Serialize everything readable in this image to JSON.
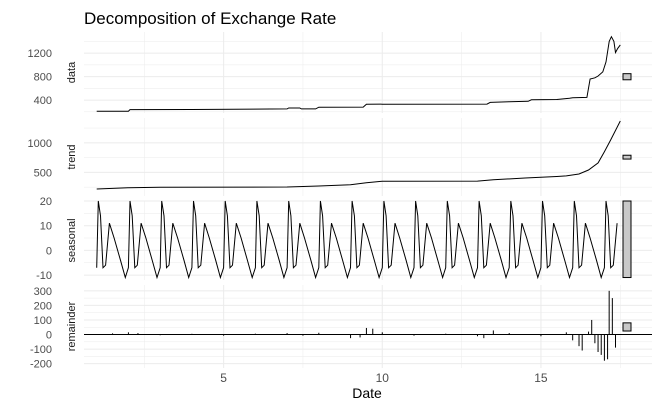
{
  "chart_data": {
    "type": "line",
    "title": "Decomposition of Exchange Rate",
    "xlabel": "Date",
    "xlim": [
      0.6,
      18.5
    ],
    "x_ticks": [
      "5",
      "10",
      "15"
    ],
    "x_tick_values": [
      5,
      10,
      15
    ],
    "background": "#ffffff",
    "grid": true,
    "grid_color": "#ebebeb",
    "line_color": "#000000",
    "range_bar_fill": "#c8c8c8",
    "panels": [
      {
        "name": "data",
        "ylim": [
          180,
          1560
        ],
        "y_ticks": [
          "400",
          "800",
          "1200"
        ],
        "y_tick_values": [
          400,
          800,
          1200
        ],
        "series": [
          {
            "x": 1.0,
            "y": 210
          },
          {
            "x": 2.0,
            "y": 210
          },
          {
            "x": 2.05,
            "y": 238
          },
          {
            "x": 4.0,
            "y": 240
          },
          {
            "x": 7.0,
            "y": 250
          },
          {
            "x": 7.05,
            "y": 265
          },
          {
            "x": 7.4,
            "y": 265
          },
          {
            "x": 7.45,
            "y": 250
          },
          {
            "x": 7.9,
            "y": 250
          },
          {
            "x": 8.0,
            "y": 278
          },
          {
            "x": 9.4,
            "y": 280
          },
          {
            "x": 9.5,
            "y": 330
          },
          {
            "x": 13.3,
            "y": 332
          },
          {
            "x": 13.4,
            "y": 360
          },
          {
            "x": 14.0,
            "y": 372
          },
          {
            "x": 14.6,
            "y": 380
          },
          {
            "x": 14.7,
            "y": 405
          },
          {
            "x": 15.5,
            "y": 410
          },
          {
            "x": 15.9,
            "y": 430
          },
          {
            "x": 16.0,
            "y": 440
          },
          {
            "x": 16.45,
            "y": 445
          },
          {
            "x": 16.55,
            "y": 760
          },
          {
            "x": 16.7,
            "y": 780
          },
          {
            "x": 16.8,
            "y": 810
          },
          {
            "x": 16.95,
            "y": 880
          },
          {
            "x": 17.05,
            "y": 1050
          },
          {
            "x": 17.15,
            "y": 1400
          },
          {
            "x": 17.22,
            "y": 1480
          },
          {
            "x": 17.3,
            "y": 1400
          },
          {
            "x": 17.35,
            "y": 1210
          },
          {
            "x": 17.42,
            "y": 1280
          },
          {
            "x": 17.5,
            "y": 1340
          }
        ],
        "range_bar": [
          746,
          850
        ]
      },
      {
        "name": "trend",
        "ylim": [
          100,
          1420
        ],
        "y_ticks": [
          "500",
          "1000"
        ],
        "y_tick_values": [
          500,
          1000
        ],
        "series": [
          {
            "x": 1.0,
            "y": 218
          },
          {
            "x": 2.0,
            "y": 240
          },
          {
            "x": 3.0,
            "y": 248
          },
          {
            "x": 7.0,
            "y": 252
          },
          {
            "x": 8.0,
            "y": 270
          },
          {
            "x": 9.0,
            "y": 292
          },
          {
            "x": 9.5,
            "y": 325
          },
          {
            "x": 10.0,
            "y": 350
          },
          {
            "x": 13.0,
            "y": 352
          },
          {
            "x": 13.5,
            "y": 375
          },
          {
            "x": 14.5,
            "y": 405
          },
          {
            "x": 15.5,
            "y": 430
          },
          {
            "x": 15.8,
            "y": 440
          },
          {
            "x": 16.2,
            "y": 472
          },
          {
            "x": 16.5,
            "y": 540
          },
          {
            "x": 16.8,
            "y": 660
          },
          {
            "x": 17.0,
            "y": 850
          },
          {
            "x": 17.2,
            "y": 1050
          },
          {
            "x": 17.5,
            "y": 1370
          }
        ],
        "range_bar": [
          725,
          790
        ]
      },
      {
        "name": "seasonal",
        "ylim": [
          -12,
          20
        ],
        "y_ticks": [
          "20",
          "10",
          "0",
          "-10"
        ],
        "y_tick_values": [
          20,
          10,
          0,
          -10
        ],
        "period": 1,
        "cycle_start": 1.0,
        "cycle_end": 17.5,
        "cycle_shape": [
          {
            "t": 0.0,
            "y": -7
          },
          {
            "t": 0.05,
            "y": 20
          },
          {
            "t": 0.12,
            "y": 14
          },
          {
            "t": 0.2,
            "y": -7
          },
          {
            "t": 0.28,
            "y": -6
          },
          {
            "t": 0.4,
            "y": 11
          },
          {
            "t": 0.55,
            "y": 5
          },
          {
            "t": 0.75,
            "y": -4
          },
          {
            "t": 0.9,
            "y": -11
          },
          {
            "t": 1.0,
            "y": -7
          }
        ],
        "range_bar": [
          -11,
          20
        ]
      },
      {
        "name": "remainder",
        "ylim": [
          -230,
          340
        ],
        "y_ticks": [
          "300",
          "200",
          "100",
          "0",
          "-100",
          "-200"
        ],
        "y_tick_values": [
          300,
          200,
          100,
          0,
          -100,
          -200
        ],
        "series": [
          {
            "x": 1.0,
            "y": 0
          },
          {
            "x": 1.5,
            "y": 8
          },
          {
            "x": 2.0,
            "y": 15
          },
          {
            "x": 2.3,
            "y": 10
          },
          {
            "x": 3.0,
            "y": -5
          },
          {
            "x": 4.0,
            "y": 5
          },
          {
            "x": 5.0,
            "y": -8
          },
          {
            "x": 6.0,
            "y": 6
          },
          {
            "x": 7.0,
            "y": 10
          },
          {
            "x": 7.5,
            "y": -8
          },
          {
            "x": 8.0,
            "y": 12
          },
          {
            "x": 9.0,
            "y": -25
          },
          {
            "x": 9.3,
            "y": -20
          },
          {
            "x": 9.5,
            "y": 45
          },
          {
            "x": 9.7,
            "y": 40
          },
          {
            "x": 10.0,
            "y": 15
          },
          {
            "x": 11.0,
            "y": -8
          },
          {
            "x": 12.0,
            "y": 6
          },
          {
            "x": 13.0,
            "y": -12
          },
          {
            "x": 13.2,
            "y": -25
          },
          {
            "x": 13.5,
            "y": 28
          },
          {
            "x": 14.0,
            "y": 10
          },
          {
            "x": 15.0,
            "y": -12
          },
          {
            "x": 15.8,
            "y": 15
          },
          {
            "x": 16.0,
            "y": -40
          },
          {
            "x": 16.2,
            "y": -80
          },
          {
            "x": 16.3,
            "y": -110
          },
          {
            "x": 16.5,
            "y": 20
          },
          {
            "x": 16.6,
            "y": 100
          },
          {
            "x": 16.7,
            "y": -60
          },
          {
            "x": 16.8,
            "y": -120
          },
          {
            "x": 16.9,
            "y": -140
          },
          {
            "x": 17.0,
            "y": -180
          },
          {
            "x": 17.1,
            "y": -170
          },
          {
            "x": 17.15,
            "y": 300
          },
          {
            "x": 17.25,
            "y": 250
          },
          {
            "x": 17.35,
            "y": -90
          },
          {
            "x": 17.5,
            "y": 0
          }
        ],
        "range_bar": [
          24,
          80
        ]
      }
    ]
  }
}
